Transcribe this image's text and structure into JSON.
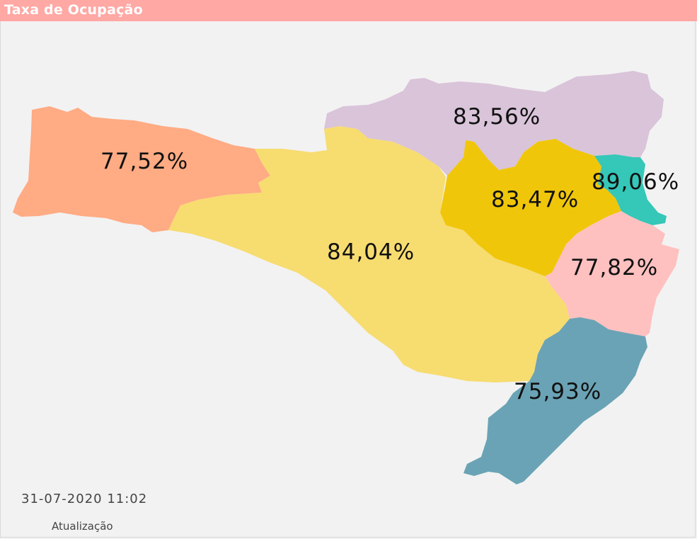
{
  "header": {
    "title": "Taxa de Ocupação"
  },
  "map": {
    "regions": [
      {
        "id": "oeste",
        "label": "77,52%",
        "value": 77.52,
        "color": "#ffab84"
      },
      {
        "id": "meio-oeste-serra",
        "label": "84,04%",
        "value": 84.04,
        "color": "#f7dc70"
      },
      {
        "id": "norte",
        "label": "83,56%",
        "value": 83.56,
        "color": "#d9c4d9"
      },
      {
        "id": "vale-itajai",
        "label": "83,47%",
        "value": 83.47,
        "color": "#f0c60a"
      },
      {
        "id": "foz-itajai",
        "label": "89,06%",
        "value": 89.06,
        "color": "#35c7b8"
      },
      {
        "id": "grande-florianopolis",
        "label": "77,82%",
        "value": 77.82,
        "color": "#ffc0c0"
      },
      {
        "id": "sul",
        "label": "75,93%",
        "value": 75.93,
        "color": "#6aa3b5"
      }
    ]
  },
  "footer": {
    "timestamp": "31-07-2020 11:02",
    "update_label": "Atualização"
  }
}
